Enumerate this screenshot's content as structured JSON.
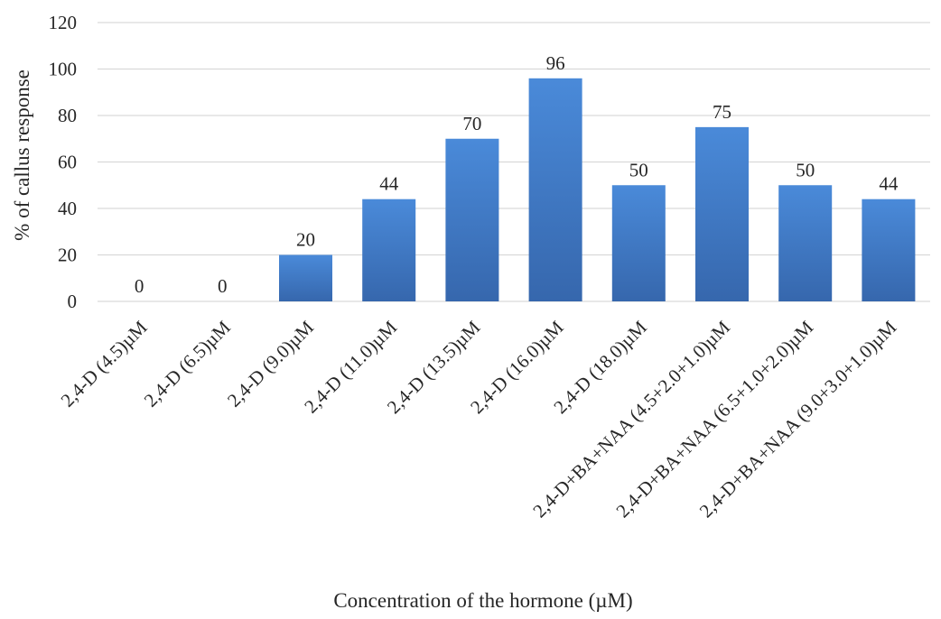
{
  "chart_data": {
    "type": "bar",
    "title": "",
    "xlabel": "Concentration of the hormone (µM)",
    "ylabel": "% of callus response",
    "ylim": [
      0,
      120
    ],
    "yticks": [
      0,
      20,
      40,
      60,
      80,
      100,
      120
    ],
    "grid": true,
    "categories": [
      "2,4-D (4.5)µM",
      "2,4-D (6.5)µM",
      "2,4-D (9.0)µM",
      "2,4-D (11.0)µM",
      "2,4-D (13.5)µM",
      "2,4-D (16.0)µM",
      "2,4-D (18.0)µM",
      "2,4-D+BA+NAA (4.5+2.0+1.0)µM",
      "2,4-D+BA+NAA (6.5+1.0+2.0)µM",
      "2,4-D+BA+NAA (9.0+3.0+1.0)µM"
    ],
    "values": [
      0,
      0,
      20,
      44,
      70,
      96,
      50,
      75,
      50,
      44
    ],
    "data_labels": [
      "0",
      "0",
      "20",
      "44",
      "70",
      "96",
      "50",
      "75",
      "50",
      "44"
    ],
    "bar_color_top": "#4a8ad9",
    "bar_color_bottom": "#3667ad"
  }
}
